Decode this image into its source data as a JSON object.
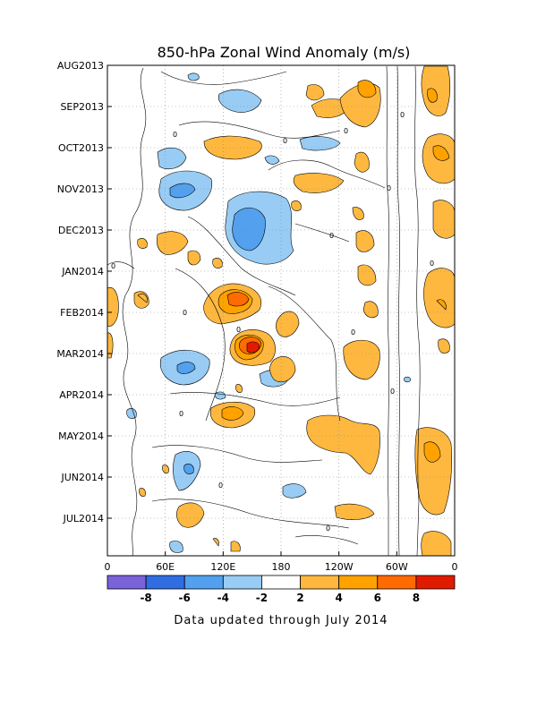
{
  "chart_data": {
    "type": "heatmap",
    "title": "850-hPa Zonal Wind Anomaly (m/s)",
    "xlabel": "",
    "ylabel": "",
    "x_ticks": [
      "0",
      "60E",
      "120E",
      "180",
      "120W",
      "60W",
      "0"
    ],
    "x_tick_values": [
      0,
      60,
      120,
      180,
      240,
      300,
      360
    ],
    "xlim": [
      0,
      360
    ],
    "y_ticks": [
      "AUG2013",
      "SEP2013",
      "OCT2013",
      "NOV2013",
      "DEC2013",
      "JAN2014",
      "FEB2014",
      "MAR2014",
      "APR2014",
      "MAY2014",
      "JUN2014",
      "JUL2014"
    ],
    "y_direction": "time increasing downward",
    "grid": true,
    "colorbar": {
      "labels": [
        "-8",
        "-6",
        "-4",
        "-2",
        "2",
        "4",
        "6",
        "8"
      ],
      "levels": [
        -8,
        -6,
        -4,
        -2,
        2,
        4,
        6,
        8
      ],
      "colors": [
        "#7a62d9",
        "#2f6de0",
        "#52a0ee",
        "#98ccf4",
        "#ffffff",
        "#ffb83f",
        "#ffa200",
        "#ff6b00",
        "#e01b00"
      ]
    },
    "contour_zero_label": "0",
    "anomaly_regions": [
      {
        "sign": "positive",
        "lon": 150,
        "date": "MAR2014",
        "peak": 9
      },
      {
        "sign": "positive",
        "lon": 138,
        "date": "FEB2014",
        "peak": 7
      },
      {
        "sign": "positive",
        "lon": 130,
        "date": "APR2014",
        "peak": 5
      },
      {
        "sign": "positive",
        "lon": 180,
        "date": "MAR2014",
        "peak": 4
      },
      {
        "sign": "positive",
        "lon": 185,
        "date": "FEB2014",
        "peak": 3
      },
      {
        "sign": "positive",
        "lon": 138,
        "date": "OCT2013",
        "peak": 3
      },
      {
        "sign": "positive",
        "lon": 140,
        "date": "OCT2013",
        "peak": 3
      },
      {
        "sign": "positive",
        "lon": 210,
        "date": "SEP2013",
        "peak": 3
      },
      {
        "sign": "positive",
        "lon": 270,
        "date": "SEP2013",
        "peak": 5
      },
      {
        "sign": "positive",
        "lon": 350,
        "date": "SEP2013",
        "peak": 5
      },
      {
        "sign": "positive",
        "lon": 350,
        "date": "OCT2013",
        "peak": 6
      },
      {
        "sign": "positive",
        "lon": 335,
        "date": "AUG2013",
        "peak": 4
      },
      {
        "sign": "positive",
        "lon": 270,
        "date": "AUG2013",
        "peak": 4
      },
      {
        "sign": "positive",
        "lon": 15,
        "date": "FEB2014",
        "peak": 3
      },
      {
        "sign": "positive",
        "lon": 60,
        "date": "DEC2013",
        "peak": 3
      },
      {
        "sign": "positive",
        "lon": 280,
        "date": "MAR2014",
        "peak": 3
      },
      {
        "sign": "positive",
        "lon": 260,
        "date": "MAY2014",
        "peak": 4
      },
      {
        "sign": "positive",
        "lon": 335,
        "date": "MAY2014",
        "peak": 5
      },
      {
        "sign": "positive",
        "lon": 350,
        "date": "FEB2014",
        "peak": 4
      },
      {
        "sign": "positive",
        "lon": 345,
        "date": "JUL2014",
        "peak": 3
      },
      {
        "sign": "positive",
        "lon": 255,
        "date": "JUL2014",
        "peak": 3
      },
      {
        "sign": "positive",
        "lon": 85,
        "date": "JUL2014",
        "peak": 3
      },
      {
        "sign": "negative",
        "lon": 150,
        "date": "DEC2013",
        "peak": -5
      },
      {
        "sign": "negative",
        "lon": 85,
        "date": "NOV2013",
        "peak": -5
      },
      {
        "sign": "negative",
        "lon": 85,
        "date": "APR2014",
        "peak": -5
      },
      {
        "sign": "negative",
        "lon": 85,
        "date": "OCT2013",
        "peak": -3
      },
      {
        "sign": "negative",
        "lon": 130,
        "date": "SEP2013",
        "peak": -3
      },
      {
        "sign": "negative",
        "lon": 220,
        "date": "OCT2013",
        "peak": -3
      },
      {
        "sign": "negative",
        "lon": 85,
        "date": "JUN2014",
        "peak": -3
      },
      {
        "sign": "negative",
        "lon": 180,
        "date": "APR2014",
        "peak": -3
      },
      {
        "sign": "negative",
        "lon": 200,
        "date": "JUN2014",
        "peak": -3
      }
    ]
  },
  "footer": "Data updated through July 2014"
}
